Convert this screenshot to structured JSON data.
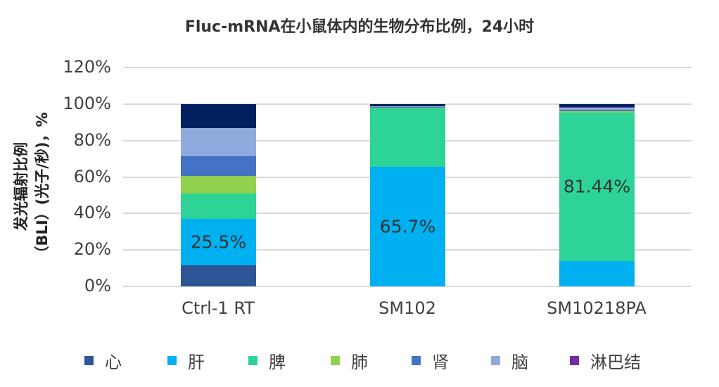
{
  "chart_data": {
    "type": "bar",
    "stacked": true,
    "percent_stacked": true,
    "title": "Fluc-mRNA在小鼠体内的生物分布比例，24小时",
    "xlabel": "",
    "ylabel": "发光辐射比例（BLI）(光子/秒)，%",
    "ylim": [
      0,
      120
    ],
    "yticks": [
      "0%",
      "20%",
      "40%",
      "60%",
      "80%",
      "100%",
      "120%"
    ],
    "grid": true,
    "legend_position": "bottom",
    "categories": [
      "Ctrl-1 RT",
      "SM102",
      "SM10218PA"
    ],
    "series": [
      {
        "name": "心",
        "color": "#2F5597",
        "values": [
          11.5,
          0.0,
          0.0
        ]
      },
      {
        "name": "肝",
        "color": "#00B0F0",
        "values": [
          25.5,
          65.7,
          14.0
        ]
      },
      {
        "name": "脾",
        "color": "#2ED398",
        "values": [
          14.0,
          32.2,
          81.44
        ]
      },
      {
        "name": "肺",
        "color": "#92D050",
        "values": [
          9.5,
          0.1,
          0.5
        ]
      },
      {
        "name": "肾",
        "color": "#4472C4",
        "values": [
          11.0,
          0.3,
          0.8
        ]
      },
      {
        "name": "脑",
        "color": "#8FAADC",
        "values": [
          15.5,
          0.4,
          1.2
        ]
      },
      {
        "name": "淋巴结",
        "color": "#7030A0",
        "values": [
          0.0,
          0.0,
          0.3
        ]
      },
      {
        "name": "",
        "color": "#002060",
        "values": [
          13.0,
          1.3,
          1.76
        ]
      }
    ],
    "data_labels": [
      {
        "category": "Ctrl-1 RT",
        "series": "肝",
        "text": "25.5%"
      },
      {
        "category": "SM102",
        "series": "肝",
        "text": "65.7%"
      },
      {
        "category": "SM10218PA",
        "series": "脾",
        "text": "81.44%"
      }
    ]
  },
  "legend": [
    {
      "label": "心",
      "color": "#2F5597"
    },
    {
      "label": "肝",
      "color": "#00B0F0"
    },
    {
      "label": "脾",
      "color": "#2ED398"
    },
    {
      "label": "肺",
      "color": "#92D050"
    },
    {
      "label": "肾",
      "color": "#4472C4"
    },
    {
      "label": "脑",
      "color": "#8FAADC"
    },
    {
      "label": "淋巴结",
      "color": "#7030A0"
    }
  ]
}
